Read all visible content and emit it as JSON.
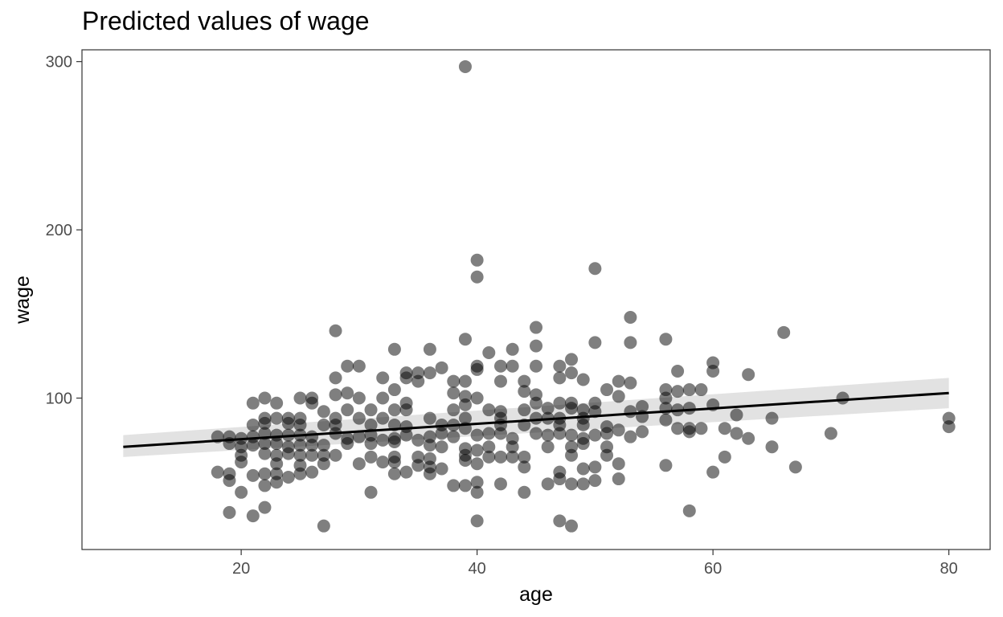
{
  "chart_data": {
    "type": "scatter",
    "title": "Predicted values of wage",
    "xlabel": "age",
    "ylabel": "wage",
    "xlim": [
      6.5,
      83.5
    ],
    "ylim": [
      10,
      307
    ],
    "xticks": [
      20,
      40,
      60,
      80
    ],
    "yticks": [
      100,
      200,
      300
    ],
    "grid": false,
    "point_color": "#000000",
    "point_opacity": 0.5,
    "line_color": "#000000",
    "band_color": "#bfbfbf",
    "fit_line": {
      "x": [
        10,
        80
      ],
      "y": [
        71,
        103
      ],
      "ci_low": [
        65,
        94
      ],
      "ci_high": [
        78,
        112
      ]
    },
    "points": [
      [
        39,
        297
      ],
      [
        40,
        182
      ],
      [
        40,
        172
      ],
      [
        50,
        177
      ],
      [
        53,
        148
      ],
      [
        45,
        142
      ],
      [
        28,
        140
      ],
      [
        66,
        139
      ],
      [
        39,
        135
      ],
      [
        56,
        135
      ],
      [
        50,
        133
      ],
      [
        53,
        133
      ],
      [
        45,
        131
      ],
      [
        33,
        129
      ],
      [
        36,
        129
      ],
      [
        43,
        129
      ],
      [
        41,
        127
      ],
      [
        48,
        123
      ],
      [
        60,
        121
      ],
      [
        29,
        119
      ],
      [
        30,
        119
      ],
      [
        40,
        119
      ],
      [
        42,
        119
      ],
      [
        43,
        119
      ],
      [
        45,
        119
      ],
      [
        47,
        119
      ],
      [
        37,
        118
      ],
      [
        40,
        117
      ],
      [
        57,
        116
      ],
      [
        60,
        116
      ],
      [
        34,
        115
      ],
      [
        35,
        115
      ],
      [
        36,
        115
      ],
      [
        48,
        115
      ],
      [
        63,
        114
      ],
      [
        28,
        112
      ],
      [
        32,
        112
      ],
      [
        34,
        112
      ],
      [
        35,
        110
      ],
      [
        38,
        110
      ],
      [
        39,
        110
      ],
      [
        42,
        110
      ],
      [
        44,
        110
      ],
      [
        47,
        112
      ],
      [
        49,
        111
      ],
      [
        52,
        110
      ],
      [
        53,
        109
      ],
      [
        44,
        104
      ],
      [
        51,
        105
      ],
      [
        56,
        105
      ],
      [
        57,
        104
      ],
      [
        58,
        105
      ],
      [
        59,
        105
      ],
      [
        33,
        105
      ],
      [
        29,
        103
      ],
      [
        28,
        102
      ],
      [
        38,
        103
      ],
      [
        39,
        101
      ],
      [
        45,
        102
      ],
      [
        52,
        101
      ],
      [
        22,
        100
      ],
      [
        25,
        100
      ],
      [
        26,
        100
      ],
      [
        30,
        100
      ],
      [
        32,
        100
      ],
      [
        40,
        100
      ],
      [
        71,
        100
      ],
      [
        56,
        100
      ],
      [
        21,
        97
      ],
      [
        23,
        97
      ],
      [
        26,
        97
      ],
      [
        34,
        97
      ],
      [
        39,
        96
      ],
      [
        45,
        97
      ],
      [
        47,
        97
      ],
      [
        48,
        97
      ],
      [
        50,
        97
      ],
      [
        54,
        95
      ],
      [
        60,
        96
      ],
      [
        27,
        92
      ],
      [
        29,
        93
      ],
      [
        31,
        93
      ],
      [
        33,
        93
      ],
      [
        34,
        93
      ],
      [
        38,
        93
      ],
      [
        41,
        93
      ],
      [
        42,
        92
      ],
      [
        44,
        93
      ],
      [
        46,
        94
      ],
      [
        48,
        94
      ],
      [
        49,
        93
      ],
      [
        50,
        92
      ],
      [
        53,
        92
      ],
      [
        56,
        94
      ],
      [
        57,
        93
      ],
      [
        58,
        94
      ],
      [
        62,
        90
      ],
      [
        22,
        88
      ],
      [
        23,
        88
      ],
      [
        24,
        88
      ],
      [
        25,
        88
      ],
      [
        28,
        88
      ],
      [
        30,
        88
      ],
      [
        32,
        88
      ],
      [
        36,
        88
      ],
      [
        39,
        88
      ],
      [
        42,
        88
      ],
      [
        45,
        88
      ],
      [
        46,
        88
      ],
      [
        47,
        88
      ],
      [
        49,
        88
      ],
      [
        54,
        89
      ],
      [
        56,
        87
      ],
      [
        65,
        88
      ],
      [
        80,
        88
      ],
      [
        21,
        84
      ],
      [
        22,
        85
      ],
      [
        24,
        85
      ],
      [
        25,
        84
      ],
      [
        27,
        84
      ],
      [
        28,
        84
      ],
      [
        31,
        84
      ],
      [
        33,
        84
      ],
      [
        34,
        83
      ],
      [
        37,
        84
      ],
      [
        38,
        84
      ],
      [
        39,
        82
      ],
      [
        42,
        84
      ],
      [
        44,
        84
      ],
      [
        47,
        84
      ],
      [
        49,
        84
      ],
      [
        51,
        83
      ],
      [
        52,
        81
      ],
      [
        57,
        82
      ],
      [
        58,
        82
      ],
      [
        59,
        82
      ],
      [
        61,
        82
      ],
      [
        80,
        83
      ],
      [
        18,
        77
      ],
      [
        19,
        77
      ],
      [
        20,
        76
      ],
      [
        21,
        77
      ],
      [
        22,
        79
      ],
      [
        23,
        78
      ],
      [
        24,
        78
      ],
      [
        25,
        78
      ],
      [
        26,
        77
      ],
      [
        28,
        79
      ],
      [
        29,
        76
      ],
      [
        30,
        77
      ],
      [
        31,
        78
      ],
      [
        32,
        75
      ],
      [
        33,
        76
      ],
      [
        34,
        78
      ],
      [
        35,
        75
      ],
      [
        36,
        77
      ],
      [
        37,
        79
      ],
      [
        38,
        77
      ],
      [
        40,
        78
      ],
      [
        41,
        79
      ],
      [
        42,
        79
      ],
      [
        43,
        76
      ],
      [
        45,
        79
      ],
      [
        46,
        78
      ],
      [
        47,
        79
      ],
      [
        48,
        78
      ],
      [
        49,
        76
      ],
      [
        50,
        78
      ],
      [
        51,
        79
      ],
      [
        53,
        77
      ],
      [
        54,
        80
      ],
      [
        58,
        80
      ],
      [
        62,
        79
      ],
      [
        63,
        76
      ],
      [
        70,
        79
      ],
      [
        19,
        73
      ],
      [
        20,
        71
      ],
      [
        21,
        72
      ],
      [
        22,
        73
      ],
      [
        23,
        73
      ],
      [
        24,
        71
      ],
      [
        25,
        72
      ],
      [
        26,
        72
      ],
      [
        27,
        72
      ],
      [
        29,
        73
      ],
      [
        31,
        73
      ],
      [
        33,
        74
      ],
      [
        36,
        72
      ],
      [
        37,
        71
      ],
      [
        39,
        70
      ],
      [
        40,
        69
      ],
      [
        41,
        71
      ],
      [
        43,
        71
      ],
      [
        46,
        71
      ],
      [
        48,
        71
      ],
      [
        49,
        73
      ],
      [
        51,
        71
      ],
      [
        65,
        71
      ],
      [
        20,
        66
      ],
      [
        22,
        67
      ],
      [
        23,
        66
      ],
      [
        24,
        67
      ],
      [
        25,
        66
      ],
      [
        26,
        66
      ],
      [
        27,
        66
      ],
      [
        28,
        66
      ],
      [
        31,
        65
      ],
      [
        33,
        65
      ],
      [
        35,
        65
      ],
      [
        36,
        64
      ],
      [
        39,
        66
      ],
      [
        41,
        65
      ],
      [
        42,
        65
      ],
      [
        43,
        65
      ],
      [
        44,
        65
      ],
      [
        48,
        66
      ],
      [
        51,
        66
      ],
      [
        61,
        65
      ],
      [
        20,
        62
      ],
      [
        23,
        61
      ],
      [
        25,
        60
      ],
      [
        27,
        61
      ],
      [
        30,
        61
      ],
      [
        32,
        62
      ],
      [
        33,
        62
      ],
      [
        35,
        60
      ],
      [
        36,
        59
      ],
      [
        37,
        58
      ],
      [
        39,
        63
      ],
      [
        40,
        61
      ],
      [
        44,
        59
      ],
      [
        47,
        56
      ],
      [
        49,
        58
      ],
      [
        50,
        59
      ],
      [
        52,
        61
      ],
      [
        56,
        60
      ],
      [
        60,
        56
      ],
      [
        67,
        59
      ],
      [
        18,
        56
      ],
      [
        19,
        55
      ],
      [
        21,
        54
      ],
      [
        22,
        55
      ],
      [
        23,
        55
      ],
      [
        24,
        53
      ],
      [
        25,
        55
      ],
      [
        26,
        56
      ],
      [
        33,
        55
      ],
      [
        34,
        56
      ],
      [
        36,
        55
      ],
      [
        38,
        48
      ],
      [
        39,
        48
      ],
      [
        40,
        50
      ],
      [
        42,
        49
      ],
      [
        44,
        44
      ],
      [
        46,
        49
      ],
      [
        47,
        52
      ],
      [
        48,
        49
      ],
      [
        49,
        49
      ],
      [
        50,
        51
      ],
      [
        52,
        52
      ],
      [
        19,
        51
      ],
      [
        22,
        48
      ],
      [
        23,
        50
      ],
      [
        20,
        44
      ],
      [
        31,
        44
      ],
      [
        40,
        44
      ],
      [
        19,
        32
      ],
      [
        21,
        30
      ],
      [
        22,
        35
      ],
      [
        58,
        33
      ],
      [
        40,
        27
      ],
      [
        47,
        27
      ],
      [
        27,
        24
      ],
      [
        48,
        24
      ]
    ]
  }
}
